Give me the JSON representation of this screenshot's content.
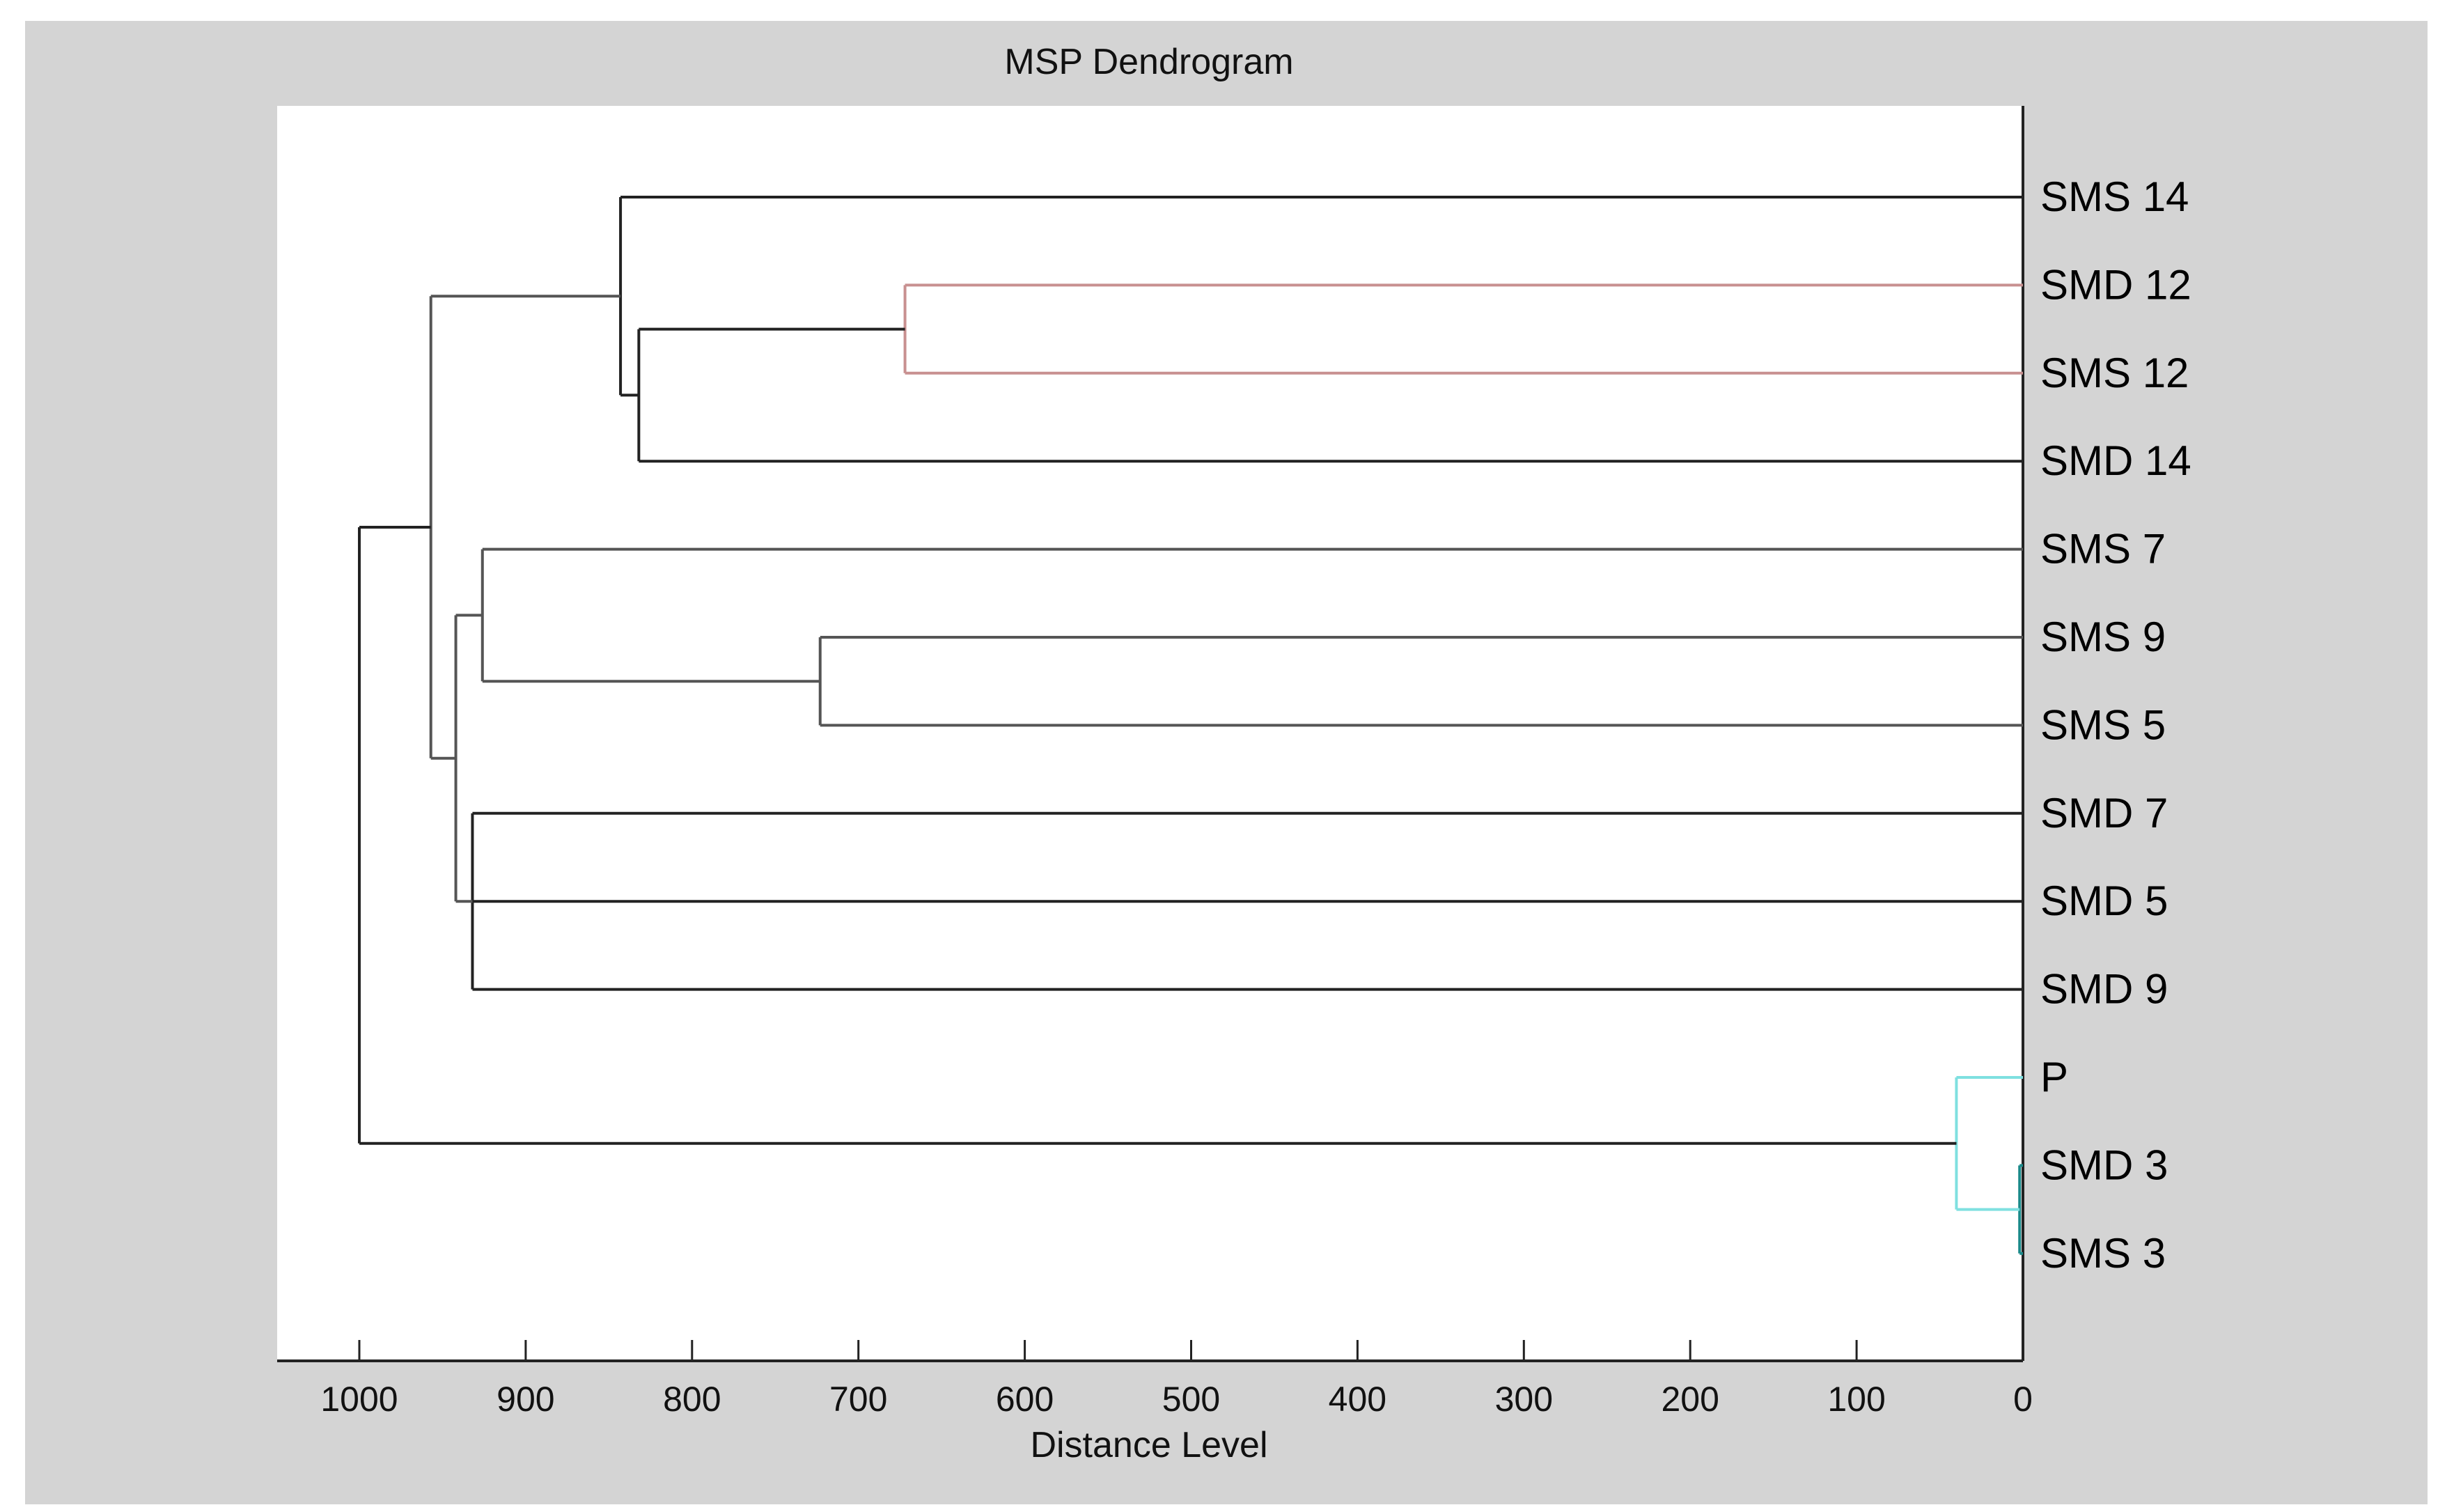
{
  "chart_data": {
    "type": "dendrogram",
    "title": "MSP Dendrogram",
    "xlabel": "Distance Level",
    "xlim": [
      1050,
      0
    ],
    "x_ticks": [
      1000,
      900,
      800,
      700,
      600,
      500,
      400,
      300,
      200,
      100,
      0
    ],
    "x_tick_labels": [
      "1000",
      "900",
      "800",
      "700",
      "600",
      "500",
      "400",
      "300",
      "200",
      "100",
      "0"
    ],
    "leaves": [
      "SMS 14",
      "SMD 12",
      "SMS 12",
      "SMD 14",
      "SMS 7",
      "SMS 9",
      "SMS 5",
      "SMD 7",
      "SMD 5",
      "SMD 9",
      "P",
      "SMD 3",
      "SMS 3"
    ],
    "merges": [
      {
        "id": "n1",
        "children": [
          "SMD 3",
          "SMS 3"
        ],
        "distance": 2,
        "color": "#1a8a8a"
      },
      {
        "id": "n2",
        "children": [
          "P",
          "n1"
        ],
        "distance": 40,
        "color": "#7fe0e0"
      },
      {
        "id": "n3",
        "children": [
          "SMD 12",
          "SMS 12"
        ],
        "distance": 672,
        "color": "#c89090"
      },
      {
        "id": "n4",
        "children": [
          "SMS 9",
          "SMS 5"
        ],
        "distance": 723,
        "color": "#555555"
      },
      {
        "id": "n5",
        "children": [
          "n3",
          "SMD 14"
        ],
        "distance": 832,
        "color": "#222222"
      },
      {
        "id": "n6",
        "children": [
          "SMS 14",
          "n5"
        ],
        "distance": 843,
        "color": "#222222"
      },
      {
        "id": "n7",
        "children": [
          "SMS 7",
          "n4"
        ],
        "distance": 926,
        "color": "#555555"
      },
      {
        "id": "n8",
        "children": [
          "SMD 7",
          "SMD 5",
          "SMD 9"
        ],
        "distance": 932,
        "color": "#222222"
      },
      {
        "id": "n9",
        "children": [
          "n7",
          "n8"
        ],
        "distance": 942,
        "color": "#555555"
      },
      {
        "id": "n10",
        "children": [
          "n6",
          "n9"
        ],
        "distance": 957,
        "color": "#555555"
      },
      {
        "id": "n11",
        "children": [
          "n10",
          "n2"
        ],
        "distance": 1000,
        "color": "#222222"
      }
    ]
  }
}
